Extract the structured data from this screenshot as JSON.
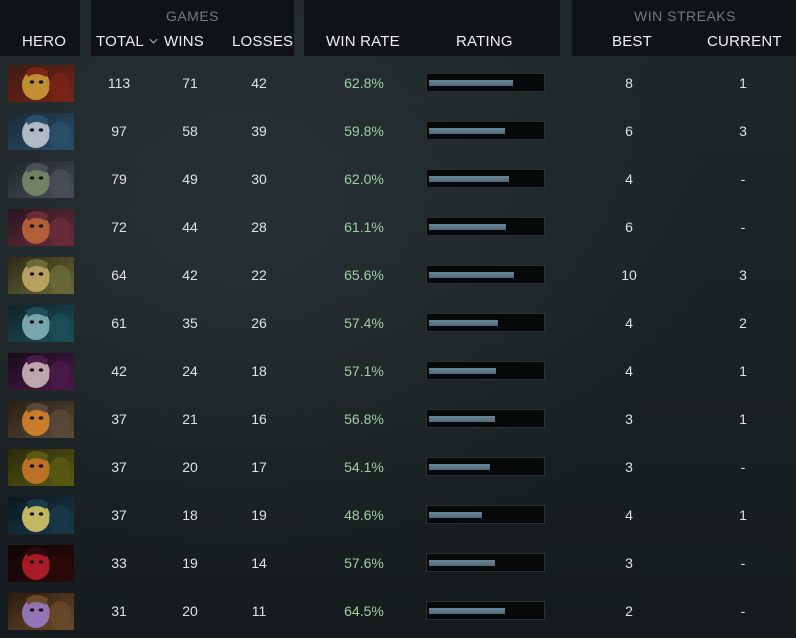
{
  "header": {
    "games_group": "GAMES",
    "streaks_group": "WIN STREAKS",
    "columns": {
      "hero": "HERO",
      "total": "TOTAL",
      "wins": "WINS",
      "losses": "LOSSES",
      "win_rate": "WIN RATE",
      "rating": "RATING",
      "best": "BEST",
      "current": "CURRENT"
    },
    "sort_icon": "chevron-down-icon"
  },
  "rows": [
    {
      "hero_icon": "hero-portrait-1",
      "total": "113",
      "wins": "71",
      "losses": "42",
      "win_rate": "62.8%",
      "rating": 0.74,
      "best": "8",
      "current": "1"
    },
    {
      "hero_icon": "hero-portrait-2",
      "total": "97",
      "wins": "58",
      "losses": "39",
      "win_rate": "59.8%",
      "rating": 0.67,
      "best": "6",
      "current": "3"
    },
    {
      "hero_icon": "hero-portrait-3",
      "total": "79",
      "wins": "49",
      "losses": "30",
      "win_rate": "62.0%",
      "rating": 0.71,
      "best": "4",
      "current": "-"
    },
    {
      "hero_icon": "hero-portrait-4",
      "total": "72",
      "wins": "44",
      "losses": "28",
      "win_rate": "61.1%",
      "rating": 0.68,
      "best": "6",
      "current": "-"
    },
    {
      "hero_icon": "hero-portrait-5",
      "total": "64",
      "wins": "42",
      "losses": "22",
      "win_rate": "65.6%",
      "rating": 0.75,
      "best": "10",
      "current": "3"
    },
    {
      "hero_icon": "hero-portrait-6",
      "total": "61",
      "wins": "35",
      "losses": "26",
      "win_rate": "57.4%",
      "rating": 0.61,
      "best": "4",
      "current": "2"
    },
    {
      "hero_icon": "hero-portrait-7",
      "total": "42",
      "wins": "24",
      "losses": "18",
      "win_rate": "57.1%",
      "rating": 0.59,
      "best": "4",
      "current": "1"
    },
    {
      "hero_icon": "hero-portrait-8",
      "total": "37",
      "wins": "21",
      "losses": "16",
      "win_rate": "56.8%",
      "rating": 0.58,
      "best": "3",
      "current": "1"
    },
    {
      "hero_icon": "hero-portrait-9",
      "total": "37",
      "wins": "20",
      "losses": "17",
      "win_rate": "54.1%",
      "rating": 0.54,
      "best": "3",
      "current": "-"
    },
    {
      "hero_icon": "hero-portrait-10",
      "total": "37",
      "wins": "18",
      "losses": "19",
      "win_rate": "48.6%",
      "rating": 0.47,
      "best": "4",
      "current": "1"
    },
    {
      "hero_icon": "hero-portrait-11",
      "total": "33",
      "wins": "19",
      "losses": "14",
      "win_rate": "57.6%",
      "rating": 0.58,
      "best": "3",
      "current": "-"
    },
    {
      "hero_icon": "hero-portrait-12",
      "total": "31",
      "wins": "20",
      "losses": "11",
      "win_rate": "64.5%",
      "rating": 0.67,
      "best": "2",
      "current": "-"
    }
  ],
  "colors": {
    "win_rate_text": "#9fd0a4",
    "rating_fill": "#5b7785",
    "rating_track": "#070909",
    "header_bg": "#0f1315"
  }
}
